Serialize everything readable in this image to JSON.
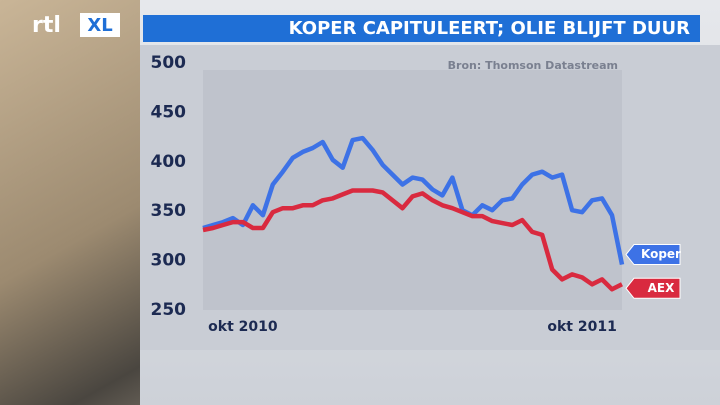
{
  "chart_data": {
    "type": "line",
    "logo": [
      "rtl",
      "XL"
    ],
    "title": "KOPER CAPITULEERT; OLIE BLIJFT DUUR",
    "source": "Bron: Thomson Datastream",
    "categories": [
      null,
      null,
      null,
      null,
      "okt 2010",
      null,
      null,
      null,
      null,
      null,
      null,
      null,
      null,
      null,
      null,
      null,
      null,
      null,
      null,
      null,
      null,
      null,
      null,
      null,
      null,
      null,
      null,
      null,
      null,
      null,
      null,
      null,
      null,
      null,
      null,
      null,
      null,
      null,
      "okt 2011",
      null,
      null,
      null,
      null
    ],
    "series": [
      {
        "name": "Koper",
        "color": "#3d72e6",
        "values": [
          333,
          336,
          339,
          343,
          336,
          356,
          346,
          377,
          390,
          404,
          410,
          414,
          420,
          402,
          394,
          422,
          424,
          412,
          397,
          387,
          377,
          384,
          382,
          372,
          366,
          384,
          351,
          346,
          356,
          351,
          361,
          363,
          377,
          387,
          390,
          384,
          387,
          351,
          349,
          361,
          363,
          346,
          296
        ]
      },
      {
        "name": "AEX",
        "color": "#d92a3f",
        "values": [
          331,
          333,
          336,
          339,
          339,
          333,
          333,
          349,
          353,
          353,
          356,
          356,
          361,
          363,
          367,
          371,
          371,
          371,
          369,
          361,
          353,
          365,
          368,
          361,
          356,
          353,
          349,
          345,
          345,
          340,
          338,
          336,
          341,
          329,
          326,
          291,
          281,
          286,
          283,
          276,
          281,
          271,
          276
        ]
      }
    ],
    "ylim": [
      250,
      500
    ],
    "yticks": [
      250,
      300,
      350,
      400,
      450,
      500
    ]
  }
}
